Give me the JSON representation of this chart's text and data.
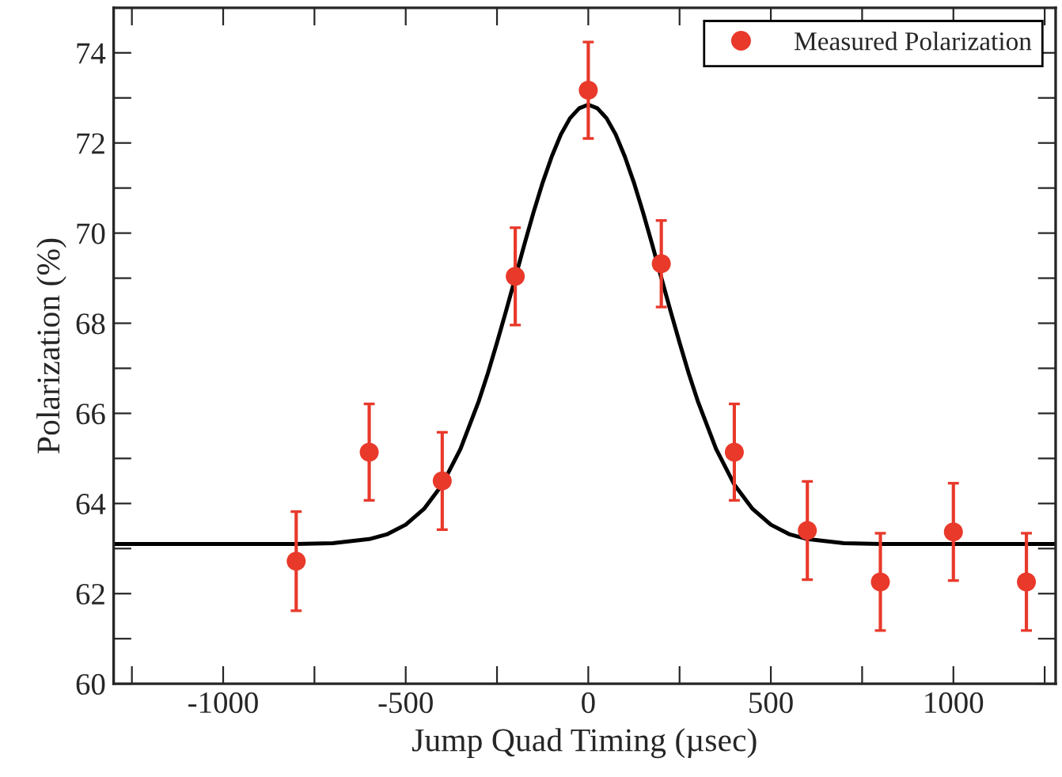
{
  "chart_data": {
    "type": "scatter",
    "xlabel": "Jump Quad Timing (µsec)",
    "ylabel": "Polarization (%)",
    "xlim": [
      -1300,
      1280
    ],
    "ylim": [
      60,
      75
    ],
    "xticks": [
      {
        "value": -1250,
        "label": null
      },
      -1000,
      {
        "value": -750,
        "label": null
      },
      -500,
      {
        "value": -250,
        "label": null
      },
      0,
      {
        "value": 250,
        "label": null
      },
      500,
      {
        "value": 750,
        "label": null
      },
      1000,
      {
        "value": 1250,
        "label": null
      }
    ],
    "yticks": [
      60,
      {
        "value": 61,
        "label": null
      },
      62,
      {
        "value": 63,
        "label": null
      },
      64,
      {
        "value": 65,
        "label": null
      },
      66,
      {
        "value": 67,
        "label": null
      },
      68,
      {
        "value": 69,
        "label": null
      },
      70,
      {
        "value": 71,
        "label": null
      },
      72,
      {
        "value": 73,
        "label": null
      },
      74
    ],
    "grid": false,
    "legend": "top right",
    "series": [
      {
        "name": "Measured Polarization",
        "color": "#e8392b",
        "marker": "circle",
        "x": [
          -800,
          -600,
          -400,
          -200,
          0,
          200,
          400,
          600,
          800,
          1000,
          1200
        ],
        "values": [
          62.72,
          65.14,
          64.5,
          69.04,
          73.17,
          69.32,
          65.14,
          63.4,
          62.26,
          63.37,
          62.26
        ],
        "errors": [
          1.1,
          1.07,
          1.08,
          1.08,
          1.07,
          0.96,
          1.07,
          1.09,
          1.08,
          1.08,
          1.08
        ]
      },
      {
        "type": "line",
        "color": "#000000",
        "marker": "none",
        "line_style": "solid",
        "x": [
          -1300,
          -800,
          -700,
          -600,
          -550,
          -500,
          -450,
          -400,
          -350,
          -300,
          -275,
          -250,
          -225,
          -200,
          -175,
          -150,
          -125,
          -100,
          -75,
          -50,
          -25,
          0,
          25,
          50,
          75,
          100,
          125,
          150,
          175,
          200,
          225,
          250,
          275,
          300,
          350,
          400,
          450,
          500,
          550,
          600,
          700,
          800,
          1280
        ],
        "values": [
          63.1,
          63.1,
          63.12,
          63.21,
          63.32,
          63.53,
          63.88,
          64.42,
          65.21,
          66.27,
          66.89,
          67.57,
          68.28,
          69.01,
          69.75,
          70.46,
          71.12,
          71.7,
          72.19,
          72.55,
          72.77,
          72.85,
          72.77,
          72.55,
          72.19,
          71.7,
          71.12,
          70.46,
          69.75,
          69.01,
          68.28,
          67.57,
          66.89,
          66.27,
          65.21,
          64.42,
          63.88,
          63.53,
          63.32,
          63.21,
          63.12,
          63.1,
          63.1
        ]
      }
    ]
  }
}
